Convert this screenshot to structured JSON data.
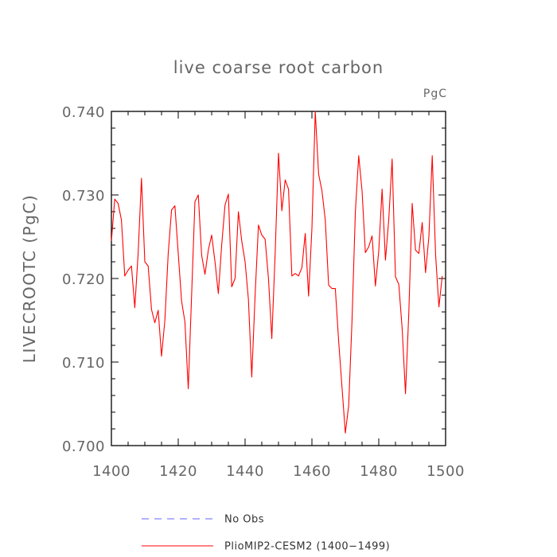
{
  "chart_data": {
    "type": "line",
    "title": "live coarse root carbon",
    "units": "PgC",
    "ylabel": "LIVECROOTC  (PgC)",
    "xlabel": "",
    "xlim": [
      1400,
      1500
    ],
    "ylim": [
      0.7,
      0.74
    ],
    "x_ticks": [
      1400,
      1420,
      1440,
      1460,
      1480,
      1500
    ],
    "x_tick_labels": [
      "1400",
      "1420",
      "1440",
      "1460",
      "1480",
      "1500"
    ],
    "y_ticks": [
      0.7,
      0.71,
      0.72,
      0.73,
      0.74
    ],
    "y_tick_labels": [
      "0.700",
      "0.710",
      "0.720",
      "0.730",
      "0.740"
    ],
    "grid": false,
    "legend_position": "bottom",
    "series": [
      {
        "name": "PlioMIP2-CESM2 (1400-1499)",
        "color": "#ff0000",
        "style": "solid",
        "x": [
          1400,
          1401,
          1402,
          1403,
          1404,
          1405,
          1406,
          1407,
          1408,
          1409,
          1410,
          1411,
          1412,
          1413,
          1414,
          1415,
          1416,
          1417,
          1418,
          1419,
          1420,
          1421,
          1422,
          1423,
          1424,
          1425,
          1426,
          1427,
          1428,
          1429,
          1430,
          1431,
          1432,
          1433,
          1434,
          1435,
          1436,
          1437,
          1438,
          1439,
          1440,
          1441,
          1442,
          1443,
          1444,
          1445,
          1446,
          1447,
          1448,
          1449,
          1450,
          1451,
          1452,
          1453,
          1454,
          1455,
          1456,
          1457,
          1458,
          1459,
          1460,
          1461,
          1462,
          1463,
          1464,
          1465,
          1466,
          1467,
          1468,
          1469,
          1470,
          1471,
          1472,
          1473,
          1474,
          1475,
          1476,
          1477,
          1478,
          1479,
          1480,
          1481,
          1482,
          1483,
          1484,
          1485,
          1486,
          1487,
          1488,
          1489,
          1490,
          1491,
          1492,
          1493,
          1494,
          1495,
          1496,
          1497,
          1498,
          1499
        ],
        "y": [
          0.7245,
          0.7295,
          0.729,
          0.727,
          0.7203,
          0.721,
          0.7215,
          0.7165,
          0.723,
          0.732,
          0.722,
          0.7215,
          0.7163,
          0.7147,
          0.7162,
          0.7107,
          0.715,
          0.723,
          0.7282,
          0.7287,
          0.723,
          0.7173,
          0.7148,
          0.7068,
          0.718,
          0.7292,
          0.73,
          0.7228,
          0.7205,
          0.7234,
          0.7252,
          0.722,
          0.7182,
          0.724,
          0.7288,
          0.7301,
          0.719,
          0.72,
          0.728,
          0.7245,
          0.722,
          0.7175,
          0.7082,
          0.718,
          0.7264,
          0.7252,
          0.7247,
          0.72,
          0.7128,
          0.723,
          0.735,
          0.7281,
          0.7318,
          0.7307,
          0.7203,
          0.7206,
          0.7203,
          0.7213,
          0.7254,
          0.7179,
          0.726,
          0.74,
          0.7325,
          0.7305,
          0.727,
          0.7192,
          0.7188,
          0.7188,
          0.7125,
          0.707,
          0.7015,
          0.7048,
          0.715,
          0.728,
          0.7347,
          0.7305,
          0.7231,
          0.7238,
          0.7251,
          0.7191,
          0.7233,
          0.7307,
          0.7222,
          0.7271,
          0.7343,
          0.7202,
          0.7193,
          0.714,
          0.7062,
          0.716,
          0.729,
          0.7234,
          0.723,
          0.7267,
          0.7207,
          0.725,
          0.7347,
          0.7229,
          0.7166,
          0.7203
        ]
      }
    ],
    "legend": [
      {
        "label": "No Obs",
        "color": "#6666ff",
        "style": "dashed"
      },
      {
        "label": "PlioMIP2-CESM2 (1400−1499)",
        "color": "#ff0000",
        "style": "solid"
      }
    ]
  }
}
